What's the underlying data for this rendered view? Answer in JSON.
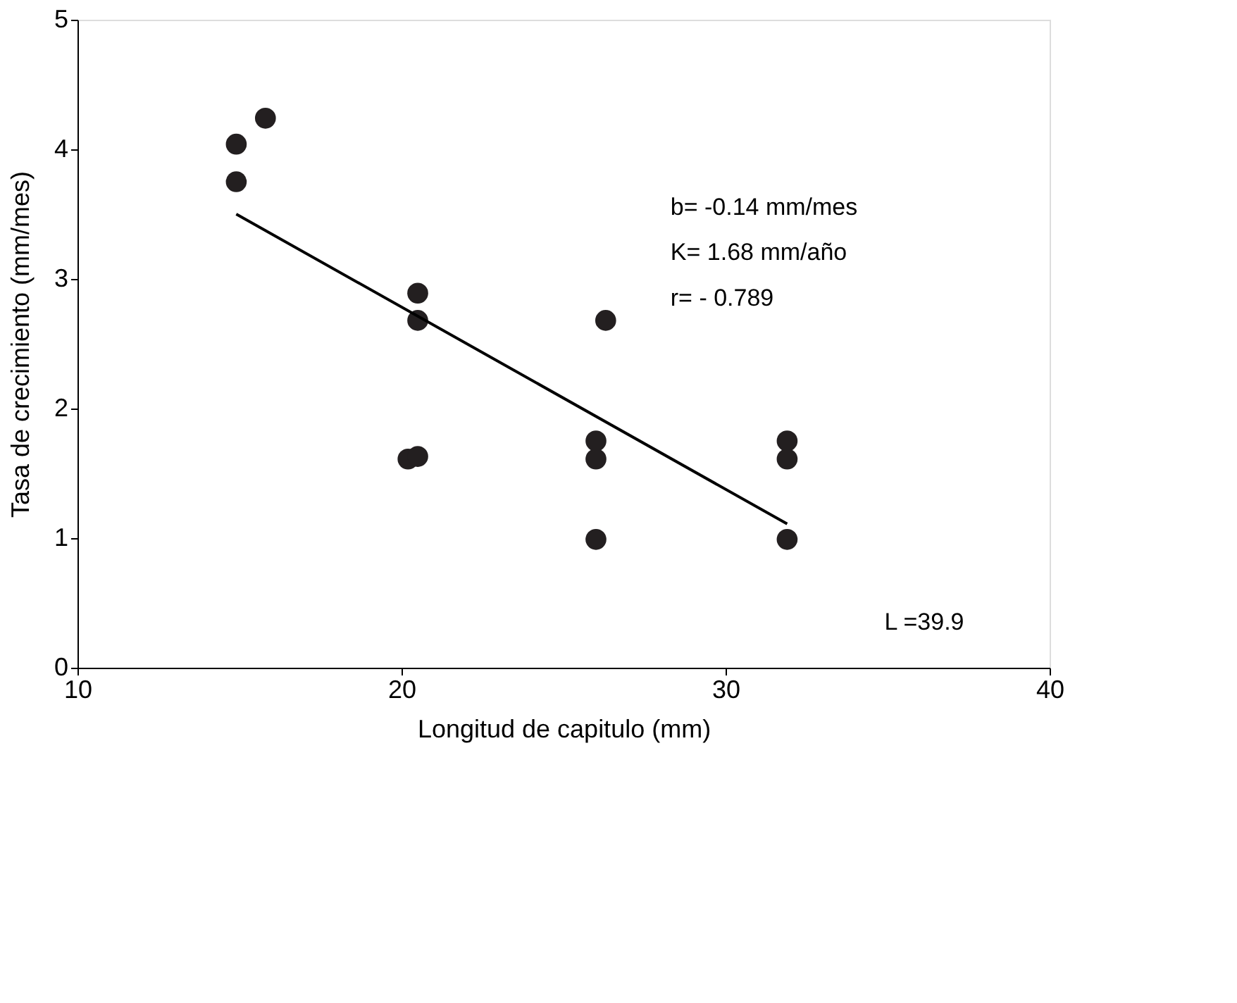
{
  "chart_data": {
    "type": "scatter",
    "xlabel": "Longitud de capitulo (mm)",
    "ylabel": "Tasa de crecimiento (mm/mes)",
    "xlim": [
      10,
      40
    ],
    "xticks": [
      10,
      20,
      30,
      40
    ],
    "ylim": [
      0,
      5
    ],
    "yticks": [
      0,
      1,
      2,
      3,
      4,
      5
    ],
    "grid": false,
    "legend": false,
    "series": [
      {
        "marker": "circle",
        "color": "#231f20",
        "x": [
          14.9,
          14.9,
          15.8,
          20.5,
          20.5,
          20.2,
          20.5,
          26.3,
          26.0,
          26.0,
          26.0,
          31.9,
          31.9,
          31.9
        ],
        "values": [
          4.04,
          3.75,
          4.24,
          2.89,
          2.68,
          1.61,
          1.63,
          2.68,
          1.75,
          1.61,
          0.99,
          1.75,
          1.61,
          0.99
        ]
      },
      {
        "type": "line",
        "color": "#000000",
        "line_style": "solid",
        "x": [
          14.9,
          31.9
        ],
        "values": [
          3.5,
          1.11
        ]
      }
    ],
    "annotations": [
      "b= -0.14 mm/mes",
      "K= 1.68 mm/año",
      "r= - 0.789",
      "L =39.9"
    ]
  }
}
